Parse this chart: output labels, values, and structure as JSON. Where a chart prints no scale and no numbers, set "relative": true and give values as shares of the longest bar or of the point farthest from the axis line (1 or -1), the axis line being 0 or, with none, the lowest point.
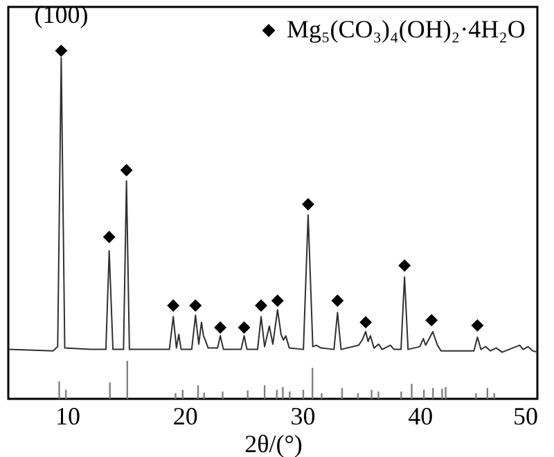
{
  "chart_data": {
    "type": "line",
    "relative": true,
    "xlabel": "2θ/(°)",
    "xlim": [
      5,
      50
    ],
    "xticks": [
      10,
      20,
      30,
      40,
      50
    ],
    "legend": "top right",
    "annotations": [
      {
        "text": "(100)",
        "x": 9.5,
        "y": 1.0
      }
    ],
    "series": [
      {
        "color": "#303030",
        "x": [
          5.0,
          8.8,
          9.2,
          9.5,
          9.8,
          12,
          13.3,
          13.58,
          13.9,
          14.8,
          15.05,
          15.3,
          18.7,
          19.03,
          19.3,
          19.5,
          19.7,
          20.6,
          20.92,
          21.2,
          21.43,
          21.6,
          21.75,
          22.0,
          22.8,
          23.03,
          23.3,
          24.8,
          25.06,
          25.3,
          26.2,
          26.5,
          26.8,
          27.2,
          27.5,
          27.9,
          28.2,
          28.4,
          28.6,
          28.9,
          30.1,
          30.5,
          30.9,
          31.2,
          31.6,
          32.7,
          33.0,
          33.3,
          34.8,
          35.1,
          35.4,
          35.6,
          35.8,
          36.1,
          36.5,
          36.8,
          37.5,
          37.8,
          38.4,
          38.7,
          39.0,
          40.0,
          40.3,
          40.5,
          40.8,
          41.1,
          41.5,
          41.8,
          44.6,
          44.9,
          45.2,
          45.6,
          46.0,
          46.5,
          47.0,
          48.5,
          48.8,
          49.2,
          49.6,
          50
        ],
        "values": [
          0.142,
          0.138,
          0.15,
          0.98,
          0.146,
          0.142,
          0.142,
          0.425,
          0.142,
          0.142,
          0.626,
          0.142,
          0.142,
          0.236,
          0.146,
          0.185,
          0.142,
          0.142,
          0.24,
          0.157,
          0.22,
          0.181,
          0.169,
          0.146,
          0.146,
          0.181,
          0.142,
          0.142,
          0.181,
          0.142,
          0.142,
          0.236,
          0.15,
          0.209,
          0.157,
          0.256,
          0.185,
          0.169,
          0.181,
          0.146,
          0.142,
          0.528,
          0.15,
          0.154,
          0.146,
          0.142,
          0.248,
          0.142,
          0.154,
          0.169,
          0.193,
          0.165,
          0.181,
          0.146,
          0.157,
          0.142,
          0.154,
          0.142,
          0.142,
          0.35,
          0.142,
          0.15,
          0.173,
          0.154,
          0.173,
          0.193,
          0.154,
          0.138,
          0.138,
          0.177,
          0.142,
          0.15,
          0.138,
          0.146,
          0.134,
          0.154,
          0.142,
          0.15,
          0.138,
          0.134
        ]
      },
      {
        "type": "scatter",
        "name": "Mg₅(CO₃)₄(OH)₂·4H₂O",
        "color": "#000000",
        "marker": "diamond",
        "x": [
          9.5,
          13.58,
          15.05,
          19.03,
          20.92,
          23.03,
          25.06,
          26.5,
          27.9,
          30.5,
          33.0,
          35.4,
          38.7,
          41.0,
          44.9
        ],
        "values": [
          1.0,
          0.465,
          0.657,
          0.268,
          0.268,
          0.205,
          0.205,
          0.268,
          0.282,
          0.559,
          0.282,
          0.22,
          0.383,
          0.226,
          0.211
        ]
      },
      {
        "type": "bar",
        "color": "#808080",
        "x": [
          9.33,
          9.9,
          13.64,
          15.12,
          19.22,
          19.83,
          21.14,
          21.65,
          23.23,
          25.36,
          26.8,
          27.84,
          28.35,
          28.93,
          30.09,
          30.87,
          31.65,
          33.39,
          34.74,
          35.9,
          36.48,
          38.42,
          39.31,
          40.35,
          41.12,
          41.9,
          42.2,
          44.78,
          45.75,
          46.33
        ],
        "values": [
          0.05,
          0.026,
          0.047,
          0.109,
          0.016,
          0.026,
          0.039,
          0.018,
          0.021,
          0.024,
          0.039,
          0.026,
          0.034,
          0.021,
          0.026,
          0.089,
          0.016,
          0.031,
          0.016,
          0.026,
          0.021,
          0.021,
          0.043,
          0.026,
          0.031,
          0.029,
          0.034,
          0.016,
          0.031,
          0.016
        ]
      }
    ]
  }
}
